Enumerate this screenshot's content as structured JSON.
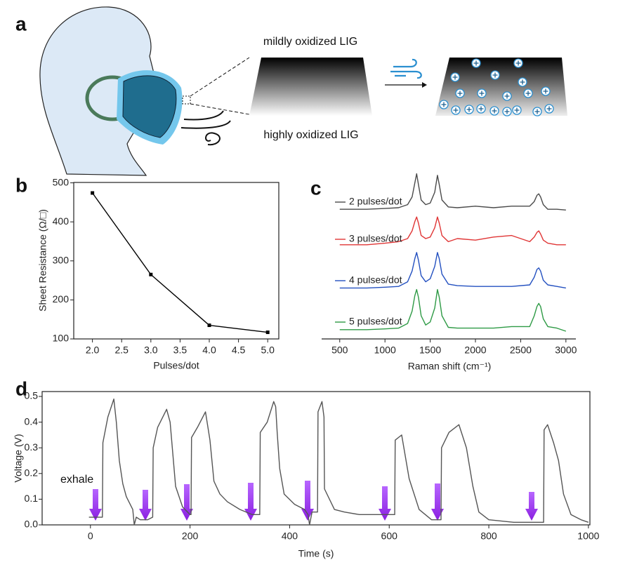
{
  "panel_a": {
    "label": "a",
    "top_text": "mildly oxidized LIG",
    "bottom_text": "highly oxidized LIG"
  },
  "chart_data": [
    {
      "type": "line",
      "panel_label": "b",
      "x_label": "Pulses/dot",
      "y_label": "Sheet Resistance (Ω/□)",
      "x": [
        2,
        3,
        4,
        5
      ],
      "values": [
        474,
        265,
        135,
        117
      ],
      "color": "#000000",
      "markers": "square",
      "xlim": [
        1.68,
        5.19
      ],
      "ylim": [
        100,
        501
      ],
      "xticks": [
        {
          "value": 2,
          "label": "2.0"
        },
        2.5,
        {
          "value": 3,
          "label": "3.0"
        },
        3.5,
        {
          "value": 4,
          "label": "4.0"
        },
        4.5,
        {
          "value": 5,
          "label": "5.0"
        }
      ],
      "yticks": [
        100,
        200,
        300,
        400,
        500
      ],
      "frame": true
    },
    {
      "type": "line",
      "panel_label": "c",
      "x_label": "Raman shift (cm⁻¹)",
      "x": [
        500,
        800,
        1000,
        1150,
        1250,
        1300,
        1330,
        1350,
        1370,
        1400,
        1450,
        1500,
        1550,
        1580,
        1600,
        1630,
        1700,
        1800,
        2000,
        2200,
        2400,
        2600,
        2650,
        2680,
        2700,
        2720,
        2750,
        2800,
        2900,
        3000
      ],
      "series": [
        {
          "name": "2 pulses/dot",
          "color": "#4a4a4a",
          "values": [
            84,
            84,
            84.5,
            85,
            87,
            92,
            101,
            107,
            100,
            90,
            87,
            88,
            95,
            106,
            100,
            90,
            85.5,
            85,
            86,
            85,
            86,
            86,
            89,
            93,
            94,
            92,
            87,
            84,
            84,
            83.5
          ]
        },
        {
          "name": "3 pulses/dot",
          "color": "#e03535",
          "values": [
            61,
            61,
            62,
            63,
            65,
            70,
            76,
            79,
            75,
            67,
            65,
            66,
            72,
            79,
            75,
            67,
            63,
            65,
            64,
            66,
            67,
            63,
            66,
            69,
            70,
            68,
            64,
            62,
            61,
            61
          ]
        },
        {
          "name": "4 pulses/dot",
          "color": "#2350c0",
          "values": [
            33,
            33,
            33.5,
            34,
            37,
            44,
            52,
            56,
            51,
            41,
            37,
            39,
            47,
            56,
            52,
            42,
            35.5,
            34.5,
            34,
            34,
            34,
            35,
            40,
            45,
            46,
            44,
            38,
            35,
            34,
            33
          ]
        },
        {
          "name": "5 pulses/dot",
          "color": "#2e9a45",
          "values": [
            6,
            6,
            6.5,
            7,
            10,
            18,
            28,
            32,
            27,
            15,
            9,
            11,
            20,
            32,
            27,
            15,
            7.5,
            7,
            7,
            7,
            8,
            8,
            15,
            21,
            23,
            21,
            13,
            8,
            7,
            5
          ]
        }
      ],
      "xlim": [
        300,
        3110
      ],
      "ylim": [
        0,
        110
      ],
      "xticks": [
        500,
        1000,
        1500,
        2000,
        2500,
        3000
      ],
      "frame": false
    },
    {
      "type": "line",
      "panel_label": "d",
      "x_label": "Time (s)",
      "y_label": "Voltage (V)",
      "annotation": "exhale",
      "x": [
        -3,
        10,
        24,
        25,
        35,
        47,
        52,
        58,
        65,
        72,
        85,
        88,
        92,
        100,
        115,
        125,
        126,
        135,
        153,
        160,
        171,
        185,
        200,
        202,
        203,
        215,
        231,
        240,
        248,
        260,
        275,
        300,
        325,
        340,
        341,
        355,
        368,
        372,
        375,
        380,
        389,
        410,
        430,
        437,
        440,
        445,
        456,
        457,
        465,
        469,
        470,
        490,
        510,
        540,
        580,
        611,
        612,
        625,
        640,
        660,
        685,
        704,
        705,
        720,
        740,
        755,
        768,
        780,
        800,
        850,
        910,
        911,
        918,
        930,
        940,
        950,
        965,
        985,
        1000
      ],
      "values": [
        0.03,
        0.03,
        0.03,
        0.32,
        0.42,
        0.49,
        0.4,
        0.25,
        0.16,
        0.11,
        0.06,
        0.0,
        0.03,
        0.02,
        0.02,
        0.03,
        0.3,
        0.38,
        0.45,
        0.4,
        0.15,
        0.07,
        0.04,
        0.04,
        0.34,
        0.38,
        0.44,
        0.33,
        0.17,
        0.12,
        0.09,
        0.06,
        0.04,
        0.04,
        0.36,
        0.4,
        0.48,
        0.46,
        0.36,
        0.22,
        0.12,
        0.08,
        0.06,
        0.04,
        0.0,
        0.05,
        0.05,
        0.44,
        0.48,
        0.42,
        0.14,
        0.06,
        0.05,
        0.04,
        0.04,
        0.04,
        0.33,
        0.35,
        0.18,
        0.06,
        0.02,
        0.02,
        0.3,
        0.36,
        0.39,
        0.3,
        0.15,
        0.05,
        0.02,
        0.01,
        0.01,
        0.37,
        0.39,
        0.32,
        0.25,
        0.12,
        0.04,
        0.02,
        0.01
      ],
      "color": "#555555",
      "xlim": [
        -97,
        1003
      ],
      "ylim": [
        0,
        0.519
      ],
      "xticks": [
        0,
        200,
        400,
        600,
        800,
        1000
      ],
      "yticks": [
        {
          "value": 0,
          "label": "0.0"
        },
        0.1,
        0.2,
        0.3,
        0.4,
        0.5
      ],
      "frame": true
    }
  ]
}
